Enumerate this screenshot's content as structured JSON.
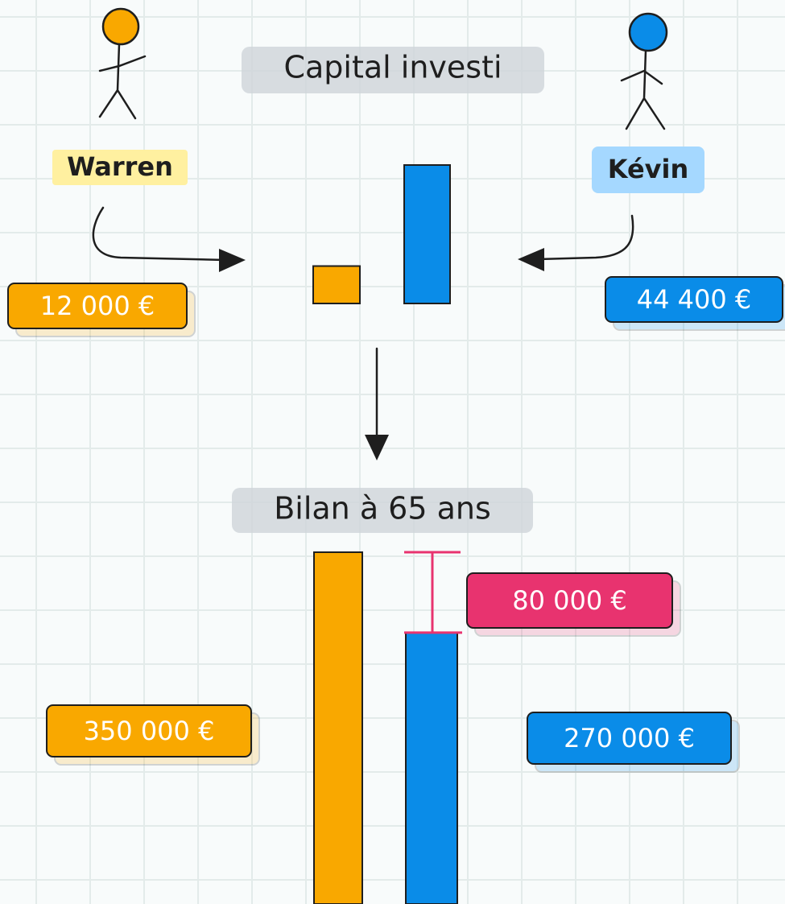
{
  "chart_data": [
    {
      "type": "bar",
      "title": "Capital investi",
      "categories": [
        "Warren",
        "Kévin"
      ],
      "values": [
        12000,
        44400
      ],
      "value_labels": [
        "12 000 €",
        "44 400 €"
      ],
      "colors": [
        "#f9a800",
        "#0a8ce8"
      ]
    },
    {
      "type": "bar",
      "title": "Bilan à 65 ans",
      "values": [
        350000,
        270000
      ],
      "value_labels": [
        "350 000 €",
        "270 000 €"
      ],
      "colors": [
        "#f9a800",
        "#0a8ce8"
      ],
      "difference": {
        "value": 80000,
        "label": "80 000 €",
        "color": "#e8336f"
      }
    }
  ]
}
